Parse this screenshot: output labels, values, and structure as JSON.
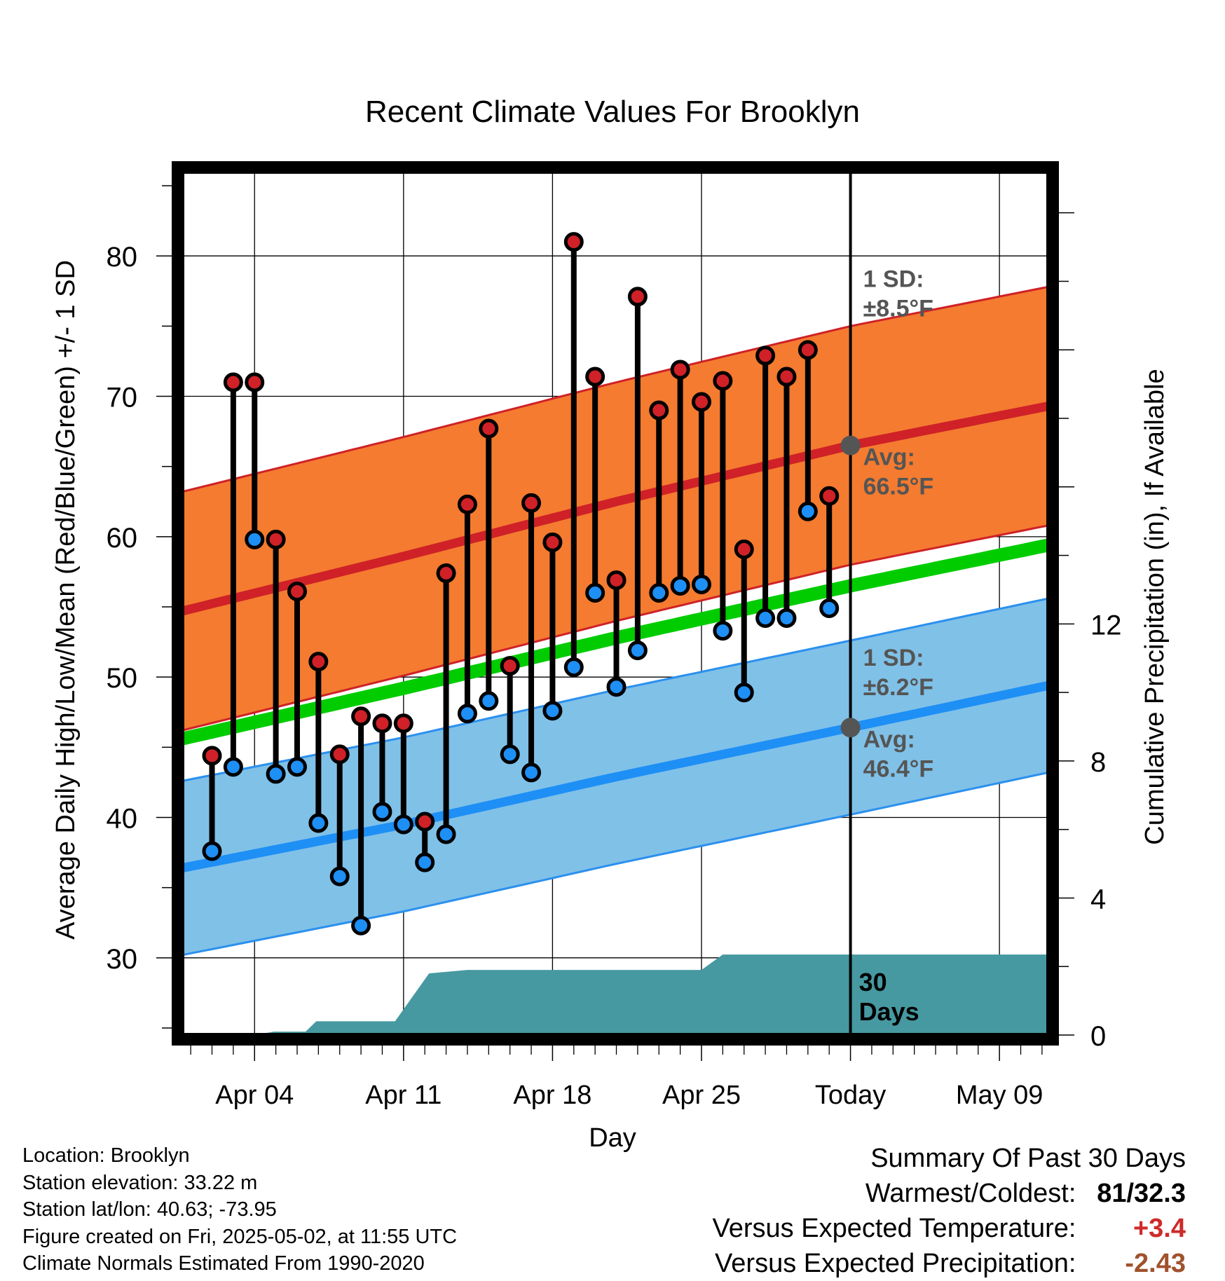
{
  "chart_data": {
    "type": "line",
    "title": "Recent Climate Values For Brooklyn",
    "xlabel": "Day",
    "ylabel": "Average Daily High/Low/Mean (Red/Blue/Green) +/- 1 SD",
    "y2label": "Cumulative Precipitation (in), If Available",
    "ylim": [
      24.5,
      86
    ],
    "y2lim": [
      0,
      25.2
    ],
    "xlim": [
      -0.4,
      40.3
    ],
    "yticks": [
      30,
      40,
      50,
      60,
      70,
      80
    ],
    "y2ticks": [
      0,
      4,
      8,
      12
    ],
    "xticks": [
      {
        "day": 3,
        "label": "Apr 04"
      },
      {
        "day": 10,
        "label": "Apr 11"
      },
      {
        "day": 17,
        "label": "Apr 18"
      },
      {
        "day": 24,
        "label": "Apr 25"
      },
      {
        "day": 31,
        "label": "Today"
      },
      {
        "day": 38,
        "label": "May 09"
      }
    ],
    "today_day": 31,
    "today_label": "30\nDays",
    "high_normal": {
      "x": [
        -0.4,
        10,
        20,
        31,
        40.3
      ],
      "mean": [
        54.7,
        58.6,
        62.5,
        66.5,
        69.3
      ],
      "sd": 8.5
    },
    "low_normal": {
      "x": [
        -0.4,
        10,
        20,
        31,
        40.3
      ],
      "mean": [
        36.4,
        39.5,
        42.9,
        46.4,
        49.4
      ],
      "sd": 6.2
    },
    "mean_normal": {
      "x": [
        -0.4,
        10,
        20,
        31,
        40.3
      ],
      "values": [
        45.6,
        49.2,
        52.8,
        56.5,
        59.4
      ]
    },
    "high_annotation": {
      "sd_label": "1 SD:",
      "sd_value": "±8.5°F",
      "avg_label": "Avg:",
      "avg_value": "66.5°F"
    },
    "low_annotation": {
      "sd_label": "1 SD:",
      "sd_value": "±6.2°F",
      "avg_label": "Avg:",
      "avg_value": "46.4°F"
    },
    "daily": [
      {
        "day": 1,
        "high": 44.4,
        "low": 37.6
      },
      {
        "day": 2,
        "high": 71,
        "low": 43.6
      },
      {
        "day": 3,
        "high": 71,
        "low": 59.8
      },
      {
        "day": 4,
        "high": 59.8,
        "low": 43.1
      },
      {
        "day": 5,
        "high": 56.1,
        "low": 43.6
      },
      {
        "day": 6,
        "high": 51.1,
        "low": 39.6
      },
      {
        "day": 7,
        "high": 44.5,
        "low": 35.8
      },
      {
        "day": 8,
        "high": 47.2,
        "low": 32.3
      },
      {
        "day": 9,
        "high": 46.7,
        "low": 40.4
      },
      {
        "day": 10,
        "high": 46.7,
        "low": 39.5
      },
      {
        "day": 11,
        "high": 39.7,
        "low": 36.8
      },
      {
        "day": 12,
        "high": 57.4,
        "low": 38.8
      },
      {
        "day": 13,
        "high": 62.3,
        "low": 47.4
      },
      {
        "day": 14,
        "high": 67.7,
        "low": 48.3
      },
      {
        "day": 15,
        "high": 50.8,
        "low": 44.5
      },
      {
        "day": 16,
        "high": 62.4,
        "low": 43.2
      },
      {
        "day": 17,
        "high": 59.6,
        "low": 47.6
      },
      {
        "day": 18,
        "high": 81,
        "low": 50.7
      },
      {
        "day": 19,
        "high": 71.4,
        "low": 56
      },
      {
        "day": 20,
        "high": 56.9,
        "low": 49.3
      },
      {
        "day": 21,
        "high": 77.1,
        "low": 51.9
      },
      {
        "day": 22,
        "high": 69,
        "low": 56
      },
      {
        "day": 23,
        "high": 71.9,
        "low": 56.5
      },
      {
        "day": 24,
        "high": 69.6,
        "low": 56.6
      },
      {
        "day": 25,
        "high": 71.1,
        "low": 53.3
      },
      {
        "day": 26,
        "high": 59.1,
        "low": 48.9
      },
      {
        "day": 27,
        "high": 72.9,
        "low": 54.2
      },
      {
        "day": 28,
        "high": 71.4,
        "low": 54.2
      },
      {
        "day": 29,
        "high": 73.3,
        "low": 61.8
      },
      {
        "day": 30,
        "high": 62.9,
        "low": 54.9
      }
    ],
    "precip_cumulative": {
      "x": [
        -0.4,
        1.2,
        2.4,
        3,
        3.9,
        5.4,
        5.9,
        9,
        9.6,
        11.2,
        13,
        16,
        20,
        24,
        25,
        31,
        40.3
      ],
      "values": [
        0,
        0,
        0,
        0,
        0.1,
        0.1,
        0.4,
        0.4,
        0.4,
        1.8,
        1.9,
        1.9,
        1.9,
        1.9,
        2.35,
        2.35,
        2.35
      ]
    }
  },
  "colors": {
    "high_band": "#f47b30",
    "high_line": "#cf2127",
    "low_band": "#80c1e8",
    "low_line": "#1e8ff5",
    "low_band_edge": "#2b90ee",
    "mean_line": "#00cc00",
    "precip": "#4699a1",
    "high_dot": "#cf2127",
    "low_dot": "#1e8ff5",
    "annotation": "#555555",
    "avg_dot": "#555555",
    "summary_warm": "#cf2a2a",
    "summary_precip": "#a0522d"
  },
  "footer": {
    "location": "Location: Brooklyn",
    "elevation": "Station elevation: 33.22 m",
    "latlon": "Station lat/lon: 40.63; -73.95",
    "created": "Figure created on Fri, 2025-05-02, at 11:55 UTC",
    "normals": "Climate Normals Estimated From 1990-2020"
  },
  "summary": {
    "title": "Summary Of Past 30 Days",
    "warmest_label": "Warmest/Coldest:",
    "warmest_value": "81",
    "coldest_value": "32.3",
    "temp_label": "Versus Expected Temperature:",
    "temp_value": "+3.4",
    "precip_label": "Versus Expected Precipitation:",
    "precip_value": "-2.43"
  }
}
